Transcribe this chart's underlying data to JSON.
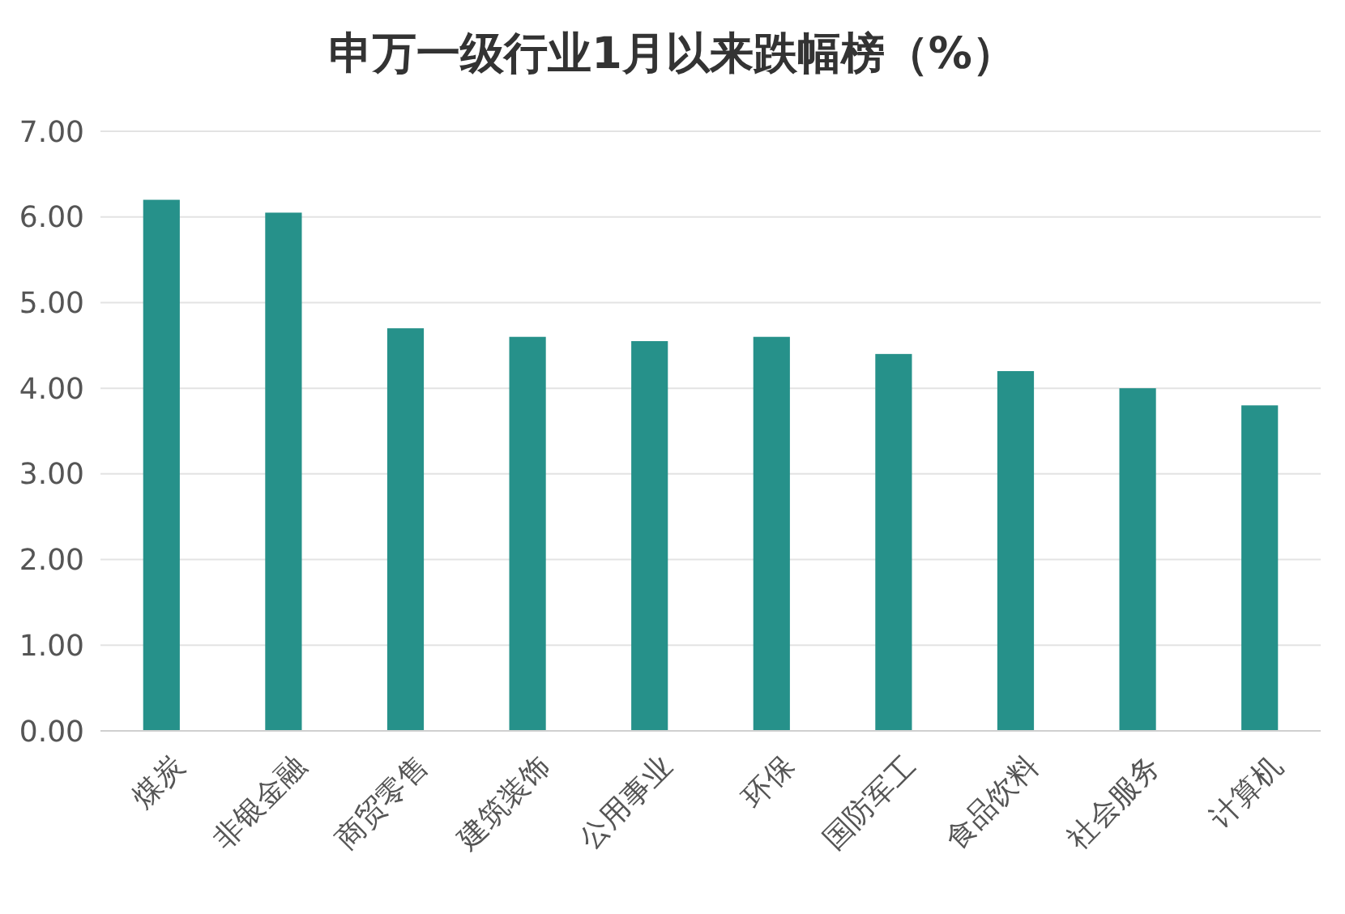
{
  "chart_data": {
    "type": "bar",
    "title": "申万一级行业1月以来跌幅榜（%）",
    "categories": [
      "煤炭",
      "非银金融",
      "商贸零售",
      "建筑装饰",
      "公用事业",
      "环保",
      "国防军工",
      "食品饮料",
      "社会服务",
      "计算机"
    ],
    "values": [
      6.2,
      6.05,
      4.7,
      4.6,
      4.55,
      4.6,
      4.4,
      4.2,
      4.0,
      3.8
    ],
    "color": "#26918a",
    "ylim": [
      0,
      7
    ],
    "yticks": [
      {
        "value": 0,
        "label": "0.00"
      },
      {
        "value": 1,
        "label": "1.00"
      },
      {
        "value": 2,
        "label": "2.00"
      },
      {
        "value": 3,
        "label": "3.00"
      },
      {
        "value": 4,
        "label": "4.00"
      },
      {
        "value": 5,
        "label": "5.00"
      },
      {
        "value": 6,
        "label": "6.00"
      },
      {
        "value": 7,
        "label": "7.00"
      }
    ],
    "grid": "y"
  }
}
